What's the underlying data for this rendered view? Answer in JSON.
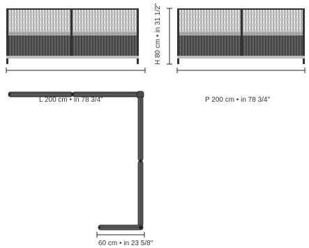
{
  "dimensions": {
    "length_label": "L 200 cm • in 78 3/4\"",
    "depth_label": "P 200 cm • in 78 3/4\"",
    "height_label": "H 80 cm • in 31 1/2\"",
    "module_label": "60 cm • in 23 5/8\""
  },
  "colors": {
    "line": "#222222",
    "weave_dark": "#4a4a4a",
    "weave_light": "#d8d8d8",
    "seat": "#9e9e9e",
    "frame": "#333333"
  }
}
